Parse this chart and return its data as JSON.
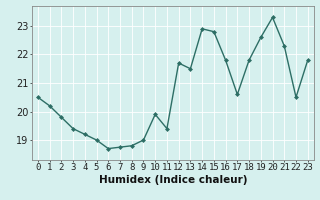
{
  "x": [
    0,
    1,
    2,
    3,
    4,
    5,
    6,
    7,
    8,
    9,
    10,
    11,
    12,
    13,
    14,
    15,
    16,
    17,
    18,
    19,
    20,
    21,
    22,
    23
  ],
  "y": [
    20.5,
    20.2,
    19.8,
    19.4,
    19.2,
    19.0,
    18.7,
    18.75,
    18.8,
    19.0,
    19.9,
    19.4,
    21.7,
    21.5,
    22.9,
    22.8,
    21.8,
    20.6,
    21.8,
    22.6,
    23.3,
    22.3,
    20.5,
    21.8
  ],
  "line_color": "#2d6e65",
  "marker": "D",
  "marker_size": 2.0,
  "bg_color": "#d6f0ee",
  "grid_color": "#ffffff",
  "axis_color": "#888888",
  "xlabel": "Humidex (Indice chaleur)",
  "xlabel_fontsize": 7.5,
  "ylabel_ticks": [
    19,
    20,
    21,
    22,
    23
  ],
  "xlim": [
    -0.5,
    23.5
  ],
  "ylim": [
    18.3,
    23.7
  ],
  "tick_fontsize": 6.5,
  "line_width": 1.0
}
